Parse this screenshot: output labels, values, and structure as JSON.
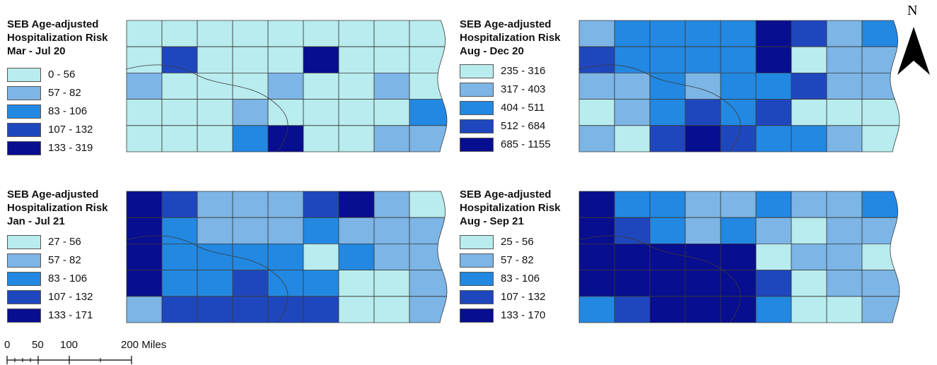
{
  "colors": {
    "c0": "#b8ecee",
    "c1": "#7cb5e6",
    "c2": "#2288e2",
    "c3": "#1f47bd",
    "c4": "#070e8f"
  },
  "panels": [
    {
      "id": "mar-jul-20",
      "title_line1": "SEB Age-adjusted",
      "title_line2": "Hospitalization Risk",
      "title_line3": "Mar - Jul 20",
      "legend": [
        "0 - 56",
        "57 - 82",
        "83 - 106",
        "107 - 132",
        "133 - 319"
      ],
      "counties": [
        0,
        0,
        0,
        0,
        0,
        0,
        0,
        0,
        0,
        0,
        3,
        0,
        0,
        0,
        4,
        0,
        0,
        0,
        1,
        0,
        0,
        0,
        1,
        0,
        0,
        1,
        0,
        0,
        0,
        0,
        1,
        0,
        0,
        0,
        0,
        2,
        0,
        0,
        0,
        2,
        4,
        0,
        0,
        1,
        1
      ]
    },
    {
      "id": "aug-dec-20",
      "title_line1": "SEB Age-adjusted",
      "title_line2": "Hospitalization Risk",
      "title_line3": "Aug - Dec 20",
      "legend": [
        "235 - 316",
        "317 - 403",
        "404 - 511",
        "512 - 684",
        "685 - 1155"
      ],
      "counties": [
        1,
        2,
        2,
        2,
        2,
        4,
        3,
        1,
        2,
        3,
        2,
        2,
        2,
        2,
        4,
        0,
        1,
        1,
        1,
        1,
        2,
        1,
        2,
        2,
        3,
        1,
        1,
        0,
        1,
        2,
        3,
        2,
        3,
        0,
        0,
        0,
        1,
        0,
        3,
        4,
        3,
        2,
        2,
        1,
        0
      ]
    },
    {
      "id": "jan-jul-21",
      "title_line1": "SEB Age-adjusted",
      "title_line2": "Hospitalization Risk",
      "title_line3": "Jan - Jul 21",
      "legend": [
        "27 - 56",
        "57 - 82",
        "83 - 106",
        "107 - 132",
        "133 - 171"
      ],
      "counties": [
        4,
        3,
        1,
        1,
        1,
        3,
        4,
        1,
        0,
        4,
        2,
        1,
        1,
        1,
        2,
        1,
        1,
        1,
        4,
        2,
        2,
        2,
        2,
        0,
        2,
        1,
        1,
        4,
        2,
        2,
        3,
        2,
        2,
        0,
        0,
        1,
        1,
        3,
        3,
        3,
        3,
        3,
        0,
        0,
        1
      ]
    },
    {
      "id": "aug-sep-21",
      "title_line1": "SEB Age-adjusted",
      "title_line2": "Hospitalization Risk",
      "title_line3": "Aug - Sep 21",
      "legend": [
        "25 - 56",
        "57 - 82",
        "83 - 106",
        "107 - 132",
        "133 - 170"
      ],
      "counties": [
        4,
        2,
        2,
        1,
        1,
        2,
        1,
        1,
        2,
        4,
        3,
        2,
        1,
        2,
        1,
        0,
        1,
        1,
        4,
        4,
        4,
        4,
        4,
        0,
        1,
        1,
        0,
        4,
        4,
        4,
        4,
        4,
        3,
        0,
        1,
        1,
        2,
        3,
        4,
        4,
        4,
        2,
        0,
        0,
        1
      ]
    }
  ],
  "north_label": "N",
  "scale": {
    "ticks": [
      "0",
      "50",
      "100"
    ],
    "end_label": "200 Miles"
  }
}
